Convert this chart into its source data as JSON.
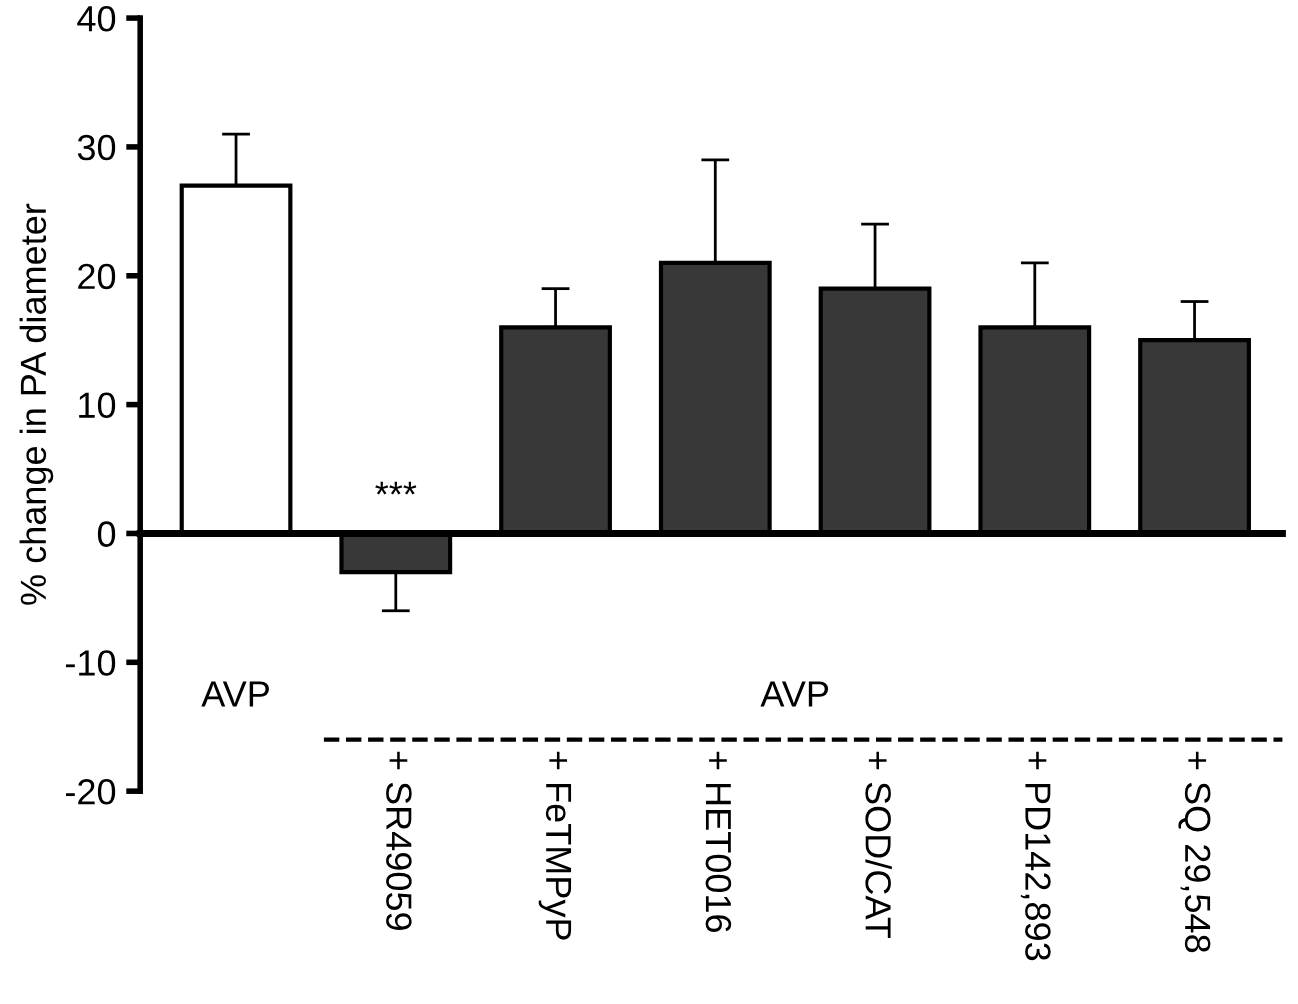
{
  "chart_data": {
    "type": "bar",
    "ylabel": "% change in PA diameter",
    "categories": [
      "AVP",
      "+ SR49059",
      "+ FeTMPyP",
      "+ HET0016",
      "+ SOD/CAT",
      "+ PD142,893",
      "+ SQ 29,548"
    ],
    "values": [
      27,
      -3,
      16,
      21,
      19,
      16,
      15
    ],
    "errors": [
      [
        27,
        31
      ],
      [
        -6,
        -3
      ],
      [
        16,
        19
      ],
      [
        21,
        29
      ],
      [
        19,
        24
      ],
      [
        16,
        21
      ],
      [
        15,
        18
      ]
    ],
    "colors": [
      "#ffffff",
      "#383838",
      "#383838",
      "#383838",
      "#383838",
      "#383838",
      "#383838"
    ],
    "ylim": [
      -20,
      40
    ],
    "yticks": [
      -20,
      -10,
      0,
      10,
      20,
      30,
      40
    ],
    "ref_lines": [
      {
        "axis": "y",
        "value": -16,
        "label": "AVP",
        "line_style": "dashed",
        "color": "#000000"
      }
    ],
    "annotations": [
      "***"
    ]
  }
}
